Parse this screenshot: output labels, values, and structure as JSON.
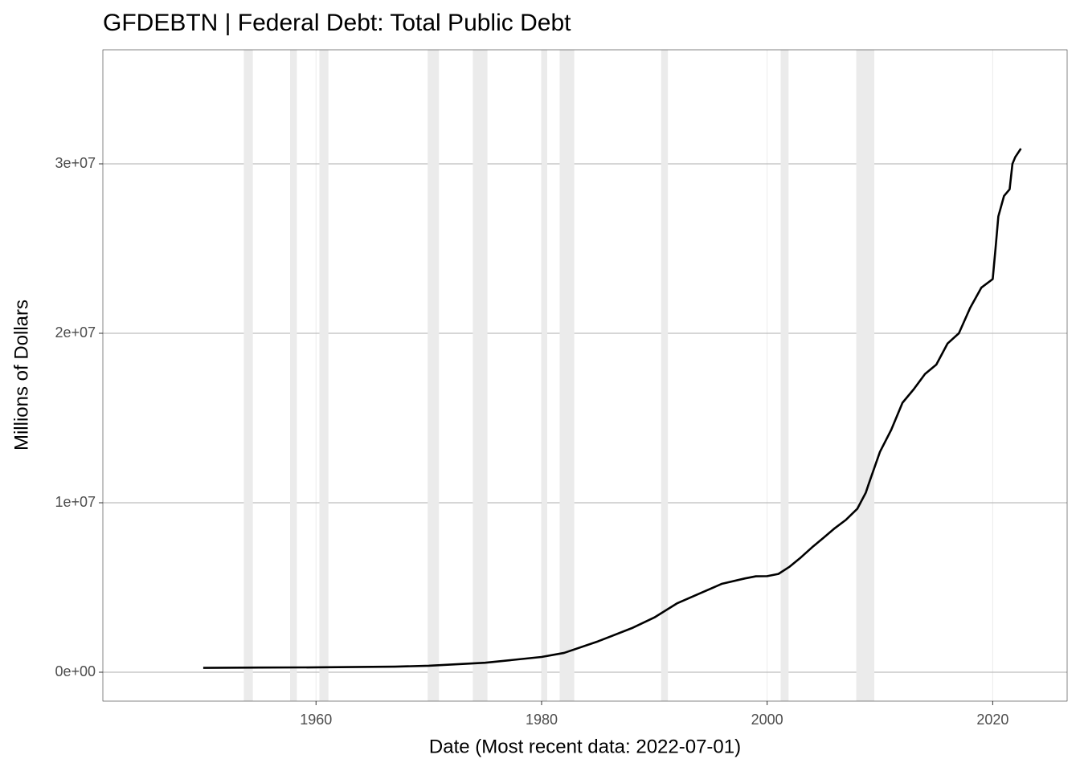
{
  "chart_data": {
    "type": "line",
    "title": "GFDEBTN | Federal Debt: Total Public Debt",
    "x_label": "Date (Most recent data: 2022-07-01)",
    "y_label": "Millions of Dollars",
    "xlim": [
      1941.1,
      2026.6
    ],
    "ylim": [
      -1706000,
      36730000
    ],
    "xticks": [
      1960,
      1980,
      2000,
      2020
    ],
    "yticks": [
      {
        "value": 0,
        "label": "0e+00"
      },
      {
        "value": 10000000,
        "label": "1e+07"
      },
      {
        "value": 20000000,
        "label": "2e+07"
      },
      {
        "value": 30000000,
        "label": "3e+07"
      }
    ],
    "grid": true,
    "recession_color": "#ebebeb",
    "recessions": [
      [
        1953.6,
        1954.4
      ],
      [
        1957.7,
        1958.3
      ],
      [
        1960.3,
        1961.1
      ],
      [
        1969.9,
        1970.9
      ],
      [
        1973.9,
        1975.2
      ],
      [
        1980.0,
        1980.5
      ],
      [
        1981.6,
        1982.9
      ],
      [
        1990.6,
        1991.2
      ],
      [
        2001.2,
        2001.9
      ],
      [
        2007.9,
        2009.5
      ]
    ],
    "series": [
      {
        "name": "GFDEBTN",
        "color": "#000000",
        "x": [
          1950,
          1955,
          1960,
          1965,
          1967,
          1970,
          1975,
          1980,
          1982,
          1985,
          1988,
          1990,
          1992,
          1994,
          1996,
          1998,
          1999,
          2000,
          2001,
          2002,
          2003,
          2004,
          2005,
          2006,
          2007,
          2008,
          2008.75,
          2009,
          2010,
          2011,
          2012,
          2013,
          2014,
          2015,
          2016,
          2017,
          2018,
          2019,
          2020,
          2020.25,
          2020.5,
          2021,
          2021.5,
          2021.75,
          2022,
          2022.5
        ],
        "values": [
          257000,
          274000,
          286000,
          317000,
          330000,
          380000,
          560000,
          900000,
          1140000,
          1820000,
          2600000,
          3230000,
          4060000,
          4640000,
          5220000,
          5530000,
          5660000,
          5670000,
          5800000,
          6230000,
          6780000,
          7380000,
          7930000,
          8500000,
          9000000,
          9650000,
          10600000,
          11100000,
          13000000,
          14300000,
          15900000,
          16700000,
          17600000,
          18150000,
          19400000,
          20000000,
          21500000,
          22700000,
          23200000,
          25000000,
          26900000,
          28100000,
          28500000,
          30000000,
          30400000,
          30900000
        ]
      }
    ]
  }
}
